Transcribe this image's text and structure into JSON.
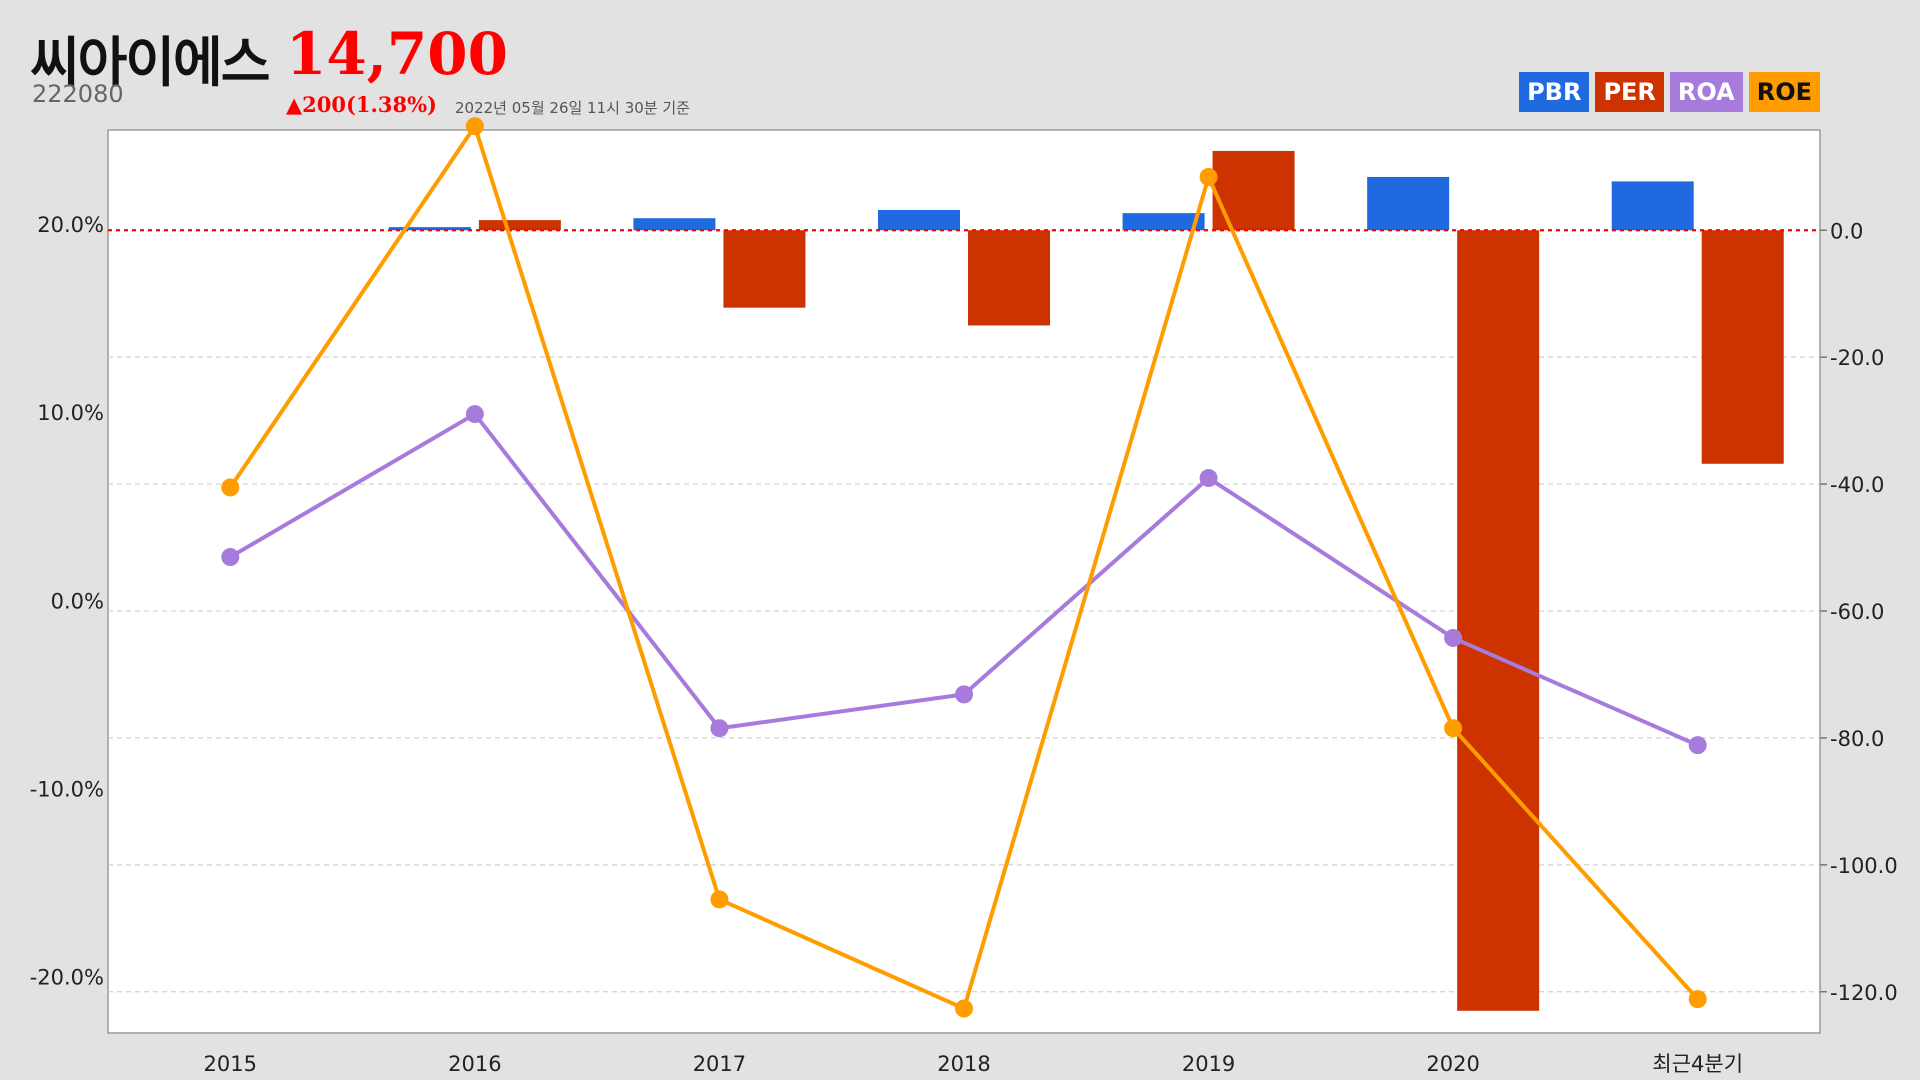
{
  "header": {
    "name": "씨아이에스",
    "price": "14,700",
    "code": "222080",
    "change": "▲200(1.38%)",
    "timestamp": "2022년 05월 26일 11시 30분 기준"
  },
  "legend": [
    {
      "label": "PBR",
      "color": "#1f6adf"
    },
    {
      "label": "PER",
      "color": "#cc3300"
    },
    {
      "label": "ROA",
      "color": "#a77bdb"
    },
    {
      "label": "ROE",
      "color": "#ff9c00"
    }
  ],
  "chart_data": {
    "type": "bar",
    "categories": [
      "2015",
      "2016",
      "2017",
      "2018",
      "2019",
      "2020",
      "최근4분기"
    ],
    "left_axis": {
      "ticks": [
        "20.0%",
        "10.0%",
        "0.0%",
        "-10.0%",
        "-20.0%"
      ],
      "range": [
        -23,
        25
      ]
    },
    "right_axis": {
      "ticks": [
        "0.0",
        "-20.0",
        "-40.0",
        "-60.0",
        "-80.0",
        "-100.0",
        "-120.0"
      ],
      "range": [
        -126.5,
        15.8
      ]
    },
    "zero_line": {
      "axis": "right",
      "value": 0,
      "color": "#ff0000"
    },
    "series": [
      {
        "name": "PBR",
        "type": "bar",
        "axis": "right",
        "color": "#1f6adf",
        "values": [
          null,
          0.5,
          1.9,
          3.2,
          2.7,
          8.4,
          7.7
        ]
      },
      {
        "name": "PER",
        "type": "bar",
        "axis": "right",
        "color": "#cc3300",
        "values": [
          null,
          1.6,
          -12.2,
          -15.0,
          12.5,
          -123.0,
          -36.8
        ]
      },
      {
        "name": "ROA",
        "type": "line",
        "axis": "left",
        "color": "#a77bdb",
        "values": [
          2.3,
          9.9,
          -6.8,
          -5.0,
          6.5,
          -2.0,
          -7.7
        ]
      },
      {
        "name": "ROE",
        "type": "line",
        "axis": "left",
        "color": "#ff9c00",
        "values": [
          6.0,
          25.2,
          -15.9,
          -21.7,
          22.5,
          -6.8,
          -21.2
        ]
      }
    ]
  }
}
